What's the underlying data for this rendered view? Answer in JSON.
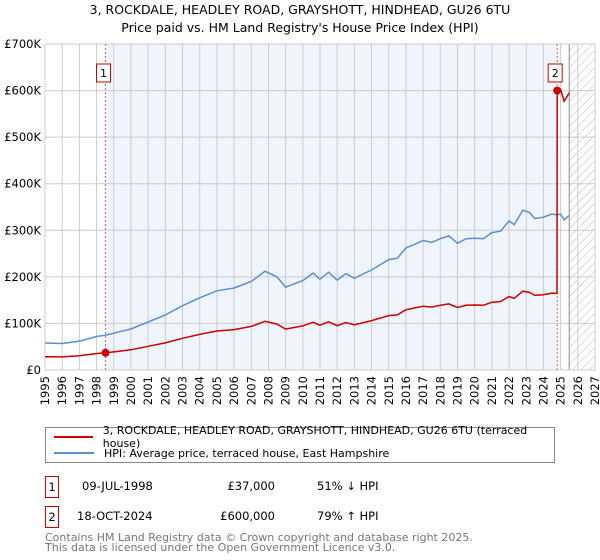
{
  "title_line1": "3, ROCKDALE, HEADLEY ROAD, GRAYSHOTT, HINDHEAD, GU26 6TU",
  "title_line2": "Price paid vs. HM Land Registry's House Price Index (HPI)",
  "chart_data": {
    "type": "line",
    "title": "3, ROCKDALE, HEADLEY ROAD, GRAYSHOTT, HINDHEAD, GU26 6TU — Price paid vs. HM Land Registry's House Price Index (HPI)",
    "xlim": [
      1995,
      2027
    ],
    "ylim": [
      0,
      700000
    ],
    "value_unit": "thousands GBP",
    "y_ticks": [
      0,
      100,
      200,
      300,
      400,
      500,
      600,
      700
    ],
    "y_tick_labels": [
      "£0",
      "£100K",
      "£200K",
      "£300K",
      "£400K",
      "£500K",
      "£600K",
      "£700K"
    ],
    "x_tick_labels": [
      "1995",
      "1996",
      "1997",
      "1998",
      "1999",
      "2000",
      "2001",
      "2002",
      "2003",
      "2004",
      "2005",
      "2006",
      "2007",
      "2008",
      "2009",
      "2010",
      "2011",
      "2012",
      "2013",
      "2014",
      "2015",
      "2016",
      "2017",
      "2018",
      "2019",
      "2020",
      "2021",
      "2022",
      "2023",
      "2024",
      "2025",
      "2026",
      "2027"
    ],
    "grid": true,
    "x": [
      1995,
      1996,
      1997,
      1998,
      1998.52,
      1999,
      2000,
      2001,
      2002,
      2003,
      2004,
      2005,
      2006,
      2007,
      2007.8,
      2008.5,
      2009,
      2010,
      2010.6,
      2011,
      2011.5,
      2012,
      2012.5,
      2013,
      2014,
      2015,
      2015.5,
      2016,
      2016.5,
      2017,
      2017.5,
      2018,
      2018.5,
      2019,
      2019.5,
      2020,
      2020.5,
      2021,
      2021.5,
      2022,
      2022.3,
      2022.8,
      2023.2,
      2023.5,
      2024,
      2024.5,
      2024.79,
      2024.8,
      2025,
      2025.2,
      2025.5
    ],
    "series": [
      {
        "name": "3, ROCKDALE, HEADLEY ROAD, GRAYSHOTT, HINDHEAD, GU26 6TU (terraced house)",
        "color": "#cc0000",
        "values": [
          28.6,
          28.1,
          30.6,
          35.5,
          37,
          38.9,
          43.4,
          50.8,
          58.2,
          68,
          76.4,
          83.8,
          86.8,
          93.7,
          104.5,
          98.6,
          87.8,
          94.7,
          102.5,
          96.1,
          103.5,
          95.1,
          102,
          97.1,
          106,
          116.8,
          118.3,
          129.2,
          133.1,
          137.1,
          135.1,
          139,
          142,
          134.1,
          139,
          139.5,
          139,
          145.4,
          146.9,
          157.8,
          153.8,
          169.1,
          166.6,
          160.2,
          161.7,
          165.2,
          164.2,
          600,
          603,
          577,
          595
        ]
      },
      {
        "name": "HPI: Average price, terraced house, East Hampshire",
        "color": "#5b8fd4",
        "values": [
          58,
          57,
          62,
          72,
          75,
          79,
          88,
          103,
          118,
          138,
          155,
          170,
          176,
          190,
          212,
          200,
          178,
          192,
          208,
          195,
          210,
          193,
          207,
          197,
          215,
          237,
          240,
          262,
          270,
          278,
          274,
          282,
          288,
          272,
          282,
          283,
          282,
          295,
          298,
          320,
          312,
          343,
          338,
          325,
          328,
          335,
          333,
          333,
          335,
          322,
          332
        ]
      }
    ],
    "sales": [
      {
        "label": "1",
        "x": 1998.52,
        "value": 37
      },
      {
        "label": "2",
        "x": 2024.8,
        "value": 600
      }
    ],
    "shaded_range": [
      1998.52,
      2024.8
    ],
    "forecast_hatch_from": 2025.5,
    "legend_position": "below"
  },
  "legend": {
    "property": "3, ROCKDALE, HEADLEY ROAD, GRAYSHOTT, HINDHEAD, GU26 6TU (terraced house)",
    "hpi": "HPI: Average price, terraced house, East Hampshire"
  },
  "transactions": [
    {
      "num": "1",
      "date": "09-JUL-1998",
      "price": "£37,000",
      "hpi": "51% ↓ HPI"
    },
    {
      "num": "2",
      "date": "18-OCT-2024",
      "price": "£600,000",
      "hpi": "79% ↑ HPI"
    }
  ],
  "footer": {
    "line1": "Contains HM Land Registry data © Crown copyright and database right 2025.",
    "line2": "This data is licensed under the Open Government Licence v3.0."
  }
}
